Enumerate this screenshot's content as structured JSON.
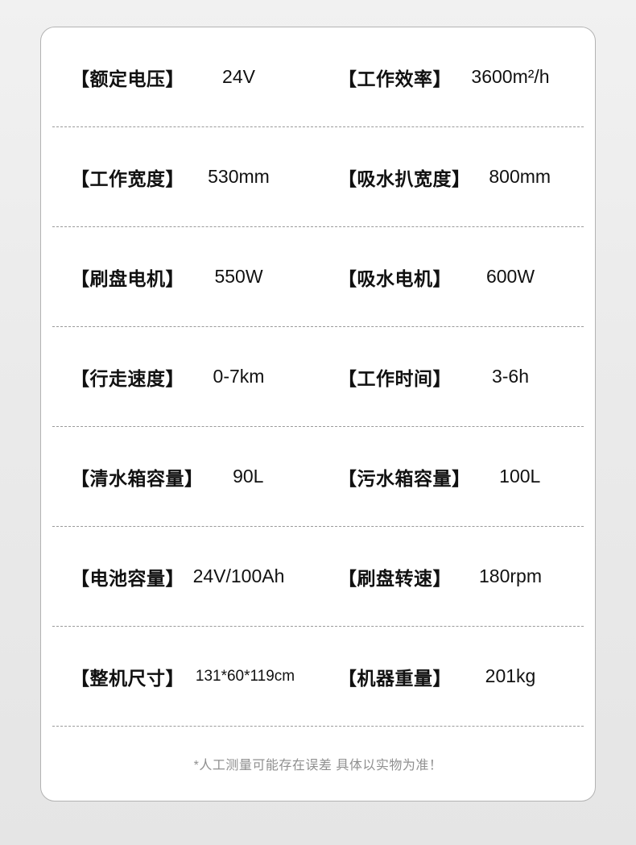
{
  "colors": {
    "page_background": "#ebebeb",
    "card_background": "#ffffff",
    "card_border": "#b3b3b3",
    "text_primary": "#111111",
    "divider_dashed": "#9a9a9a",
    "disclaimer_text": "#8f8f8f"
  },
  "specs": {
    "rows": [
      {
        "left": {
          "label": "【额定电压】",
          "value": "24V"
        },
        "right": {
          "label": "【工作效率】",
          "value": "3600m²/h"
        }
      },
      {
        "left": {
          "label": "【工作宽度】",
          "value": "530mm"
        },
        "right": {
          "label": "【吸水扒宽度】",
          "value": "800mm"
        }
      },
      {
        "left": {
          "label": "【刷盘电机】",
          "value": "550W"
        },
        "right": {
          "label": "【吸水电机】",
          "value": "600W"
        }
      },
      {
        "left": {
          "label": "【行走速度】",
          "value": "0-7km"
        },
        "right": {
          "label": "【工作时间】",
          "value": "3-6h"
        }
      },
      {
        "left": {
          "label": "【清水箱容量】",
          "value": "90L"
        },
        "right": {
          "label": "【污水箱容量】",
          "value": "100L"
        }
      },
      {
        "left": {
          "label": "【电池容量】",
          "value": "24V/100Ah"
        },
        "right": {
          "label": "【刷盘转速】",
          "value": "180rpm"
        }
      },
      {
        "left": {
          "label": "【整机尺寸】",
          "value": "131*60*119cm"
        },
        "right": {
          "label": "【机器重量】",
          "value": "201kg"
        }
      }
    ]
  },
  "footer": {
    "disclaimer": "*人工测量可能存在误差 具体以实物为准！"
  }
}
